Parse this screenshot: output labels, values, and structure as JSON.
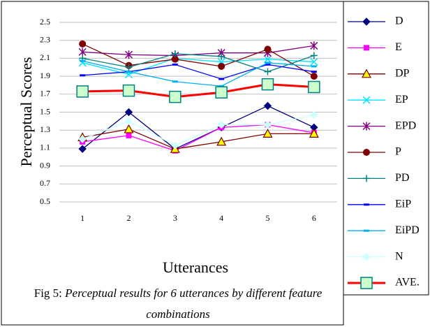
{
  "chart_data": {
    "type": "line",
    "x_label": "Utterances",
    "y_label": "Perceptual Scores",
    "caption": {
      "label": "Fig 5:",
      "text": "Perceptual results for 6 utterances by different feature combinations"
    },
    "categories": [
      "1",
      "2",
      "3",
      "4",
      "5",
      "6"
    ],
    "ylim": [
      0.5,
      2.5
    ],
    "yticks": [
      0.5,
      0.7,
      0.9,
      1.1,
      1.3,
      1.5,
      1.7,
      1.9,
      2.1,
      2.3,
      2.5
    ],
    "grid": true,
    "series": [
      {
        "name": "D",
        "color": "#000080",
        "marker": "diamond",
        "values": [
          1.09,
          1.5,
          1.09,
          1.33,
          1.57,
          1.33
        ]
      },
      {
        "name": "E",
        "color": "#ff00ff",
        "marker": "square",
        "values": [
          1.17,
          1.24,
          1.07,
          1.33,
          1.36,
          1.27
        ]
      },
      {
        "name": "DP",
        "color": "#800000",
        "marker": "triangle",
        "values": [
          1.22,
          1.31,
          1.09,
          1.17,
          1.26,
          1.26
        ]
      },
      {
        "name": "EP",
        "color": "#00e5ff",
        "marker": "x",
        "values": [
          2.05,
          1.92,
          2.1,
          2.06,
          2.09,
          2.06
        ]
      },
      {
        "name": "EPD",
        "color": "#800080",
        "marker": "star",
        "values": [
          2.17,
          2.14,
          2.13,
          2.16,
          2.16,
          2.24
        ]
      },
      {
        "name": "P",
        "color": "#800000",
        "marker": "circle",
        "values": [
          2.26,
          2.02,
          2.09,
          2.01,
          2.2,
          1.9
        ]
      },
      {
        "name": "PD",
        "color": "#008080",
        "marker": "plus",
        "values": [
          2.1,
          2.0,
          2.15,
          2.12,
          1.95,
          2.13
        ]
      },
      {
        "name": "EiP",
        "color": "#0000ff",
        "marker": "dash",
        "values": [
          1.91,
          1.95,
          2.03,
          1.87,
          2.03,
          1.95
        ]
      },
      {
        "name": "EiPD",
        "color": "#00b0f0",
        "marker": "dash",
        "values": [
          2.07,
          1.95,
          1.84,
          1.79,
          2.05,
          2.01
        ]
      },
      {
        "name": "N",
        "color": "#ccffff",
        "marker": "diamond",
        "values": [
          1.2,
          1.4,
          1.13,
          1.36,
          1.36,
          1.47
        ]
      },
      {
        "name": "AVE.",
        "color": "#ff0000",
        "marker": "bigsquare",
        "values": [
          1.73,
          1.74,
          1.67,
          1.72,
          1.81,
          1.78
        ]
      }
    ]
  }
}
